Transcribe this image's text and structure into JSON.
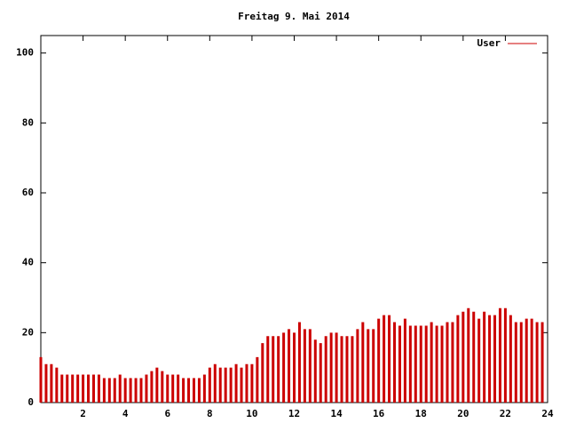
{
  "chart_data": {
    "type": "impulse",
    "title": "Freitag 9. Mai 2014",
    "xlim": [
      0,
      24
    ],
    "xticks": [
      2,
      4,
      6,
      8,
      10,
      12,
      14,
      16,
      18,
      20,
      22,
      24
    ],
    "ylim": [
      0,
      105
    ],
    "yticks": [
      0,
      20,
      40,
      60,
      80,
      100
    ],
    "legend": "top-right",
    "x": [
      0,
      0.25,
      0.5,
      0.75,
      1,
      1.25,
      1.5,
      1.75,
      2,
      2.25,
      2.5,
      2.75,
      3,
      3.25,
      3.5,
      3.75,
      4,
      4.25,
      4.5,
      4.75,
      5,
      5.25,
      5.5,
      5.75,
      6,
      6.25,
      6.5,
      6.75,
      7,
      7.25,
      7.5,
      7.75,
      8,
      8.25,
      8.5,
      8.75,
      9,
      9.25,
      9.5,
      9.75,
      10,
      10.25,
      10.5,
      10.75,
      11,
      11.25,
      11.5,
      11.75,
      12,
      12.25,
      12.5,
      12.75,
      13,
      13.25,
      13.5,
      13.75,
      14,
      14.25,
      14.5,
      14.75,
      15,
      15.25,
      15.5,
      15.75,
      16,
      16.25,
      16.5,
      16.75,
      17,
      17.25,
      17.5,
      17.75,
      18,
      18.25,
      18.5,
      18.75,
      19,
      19.25,
      19.5,
      19.75,
      20,
      20.25,
      20.5,
      20.75,
      21,
      21.25,
      21.5,
      21.75,
      22,
      22.25,
      22.5,
      22.75,
      23,
      23.25,
      23.5,
      23.75
    ],
    "series": [
      {
        "name": "User",
        "color": "#cc0000",
        "values": [
          13,
          11,
          11,
          10,
          8,
          8,
          8,
          8,
          8,
          8,
          8,
          8,
          7,
          7,
          7,
          8,
          7,
          7,
          7,
          7,
          8,
          9,
          10,
          9,
          8,
          8,
          8,
          7,
          7,
          7,
          7,
          8,
          10,
          11,
          10,
          10,
          10,
          11,
          10,
          11,
          11,
          13,
          17,
          19,
          19,
          19,
          20,
          21,
          20,
          23,
          21,
          21,
          18,
          17,
          19,
          20,
          20,
          19,
          19,
          19,
          21,
          23,
          21,
          21,
          24,
          25,
          25,
          23,
          22,
          24,
          22,
          22,
          22,
          22,
          23,
          22,
          22,
          23,
          23,
          25,
          26,
          27,
          26,
          24,
          26,
          25,
          25,
          27,
          27,
          25,
          23,
          23,
          24,
          24,
          23,
          23
        ]
      }
    ]
  }
}
